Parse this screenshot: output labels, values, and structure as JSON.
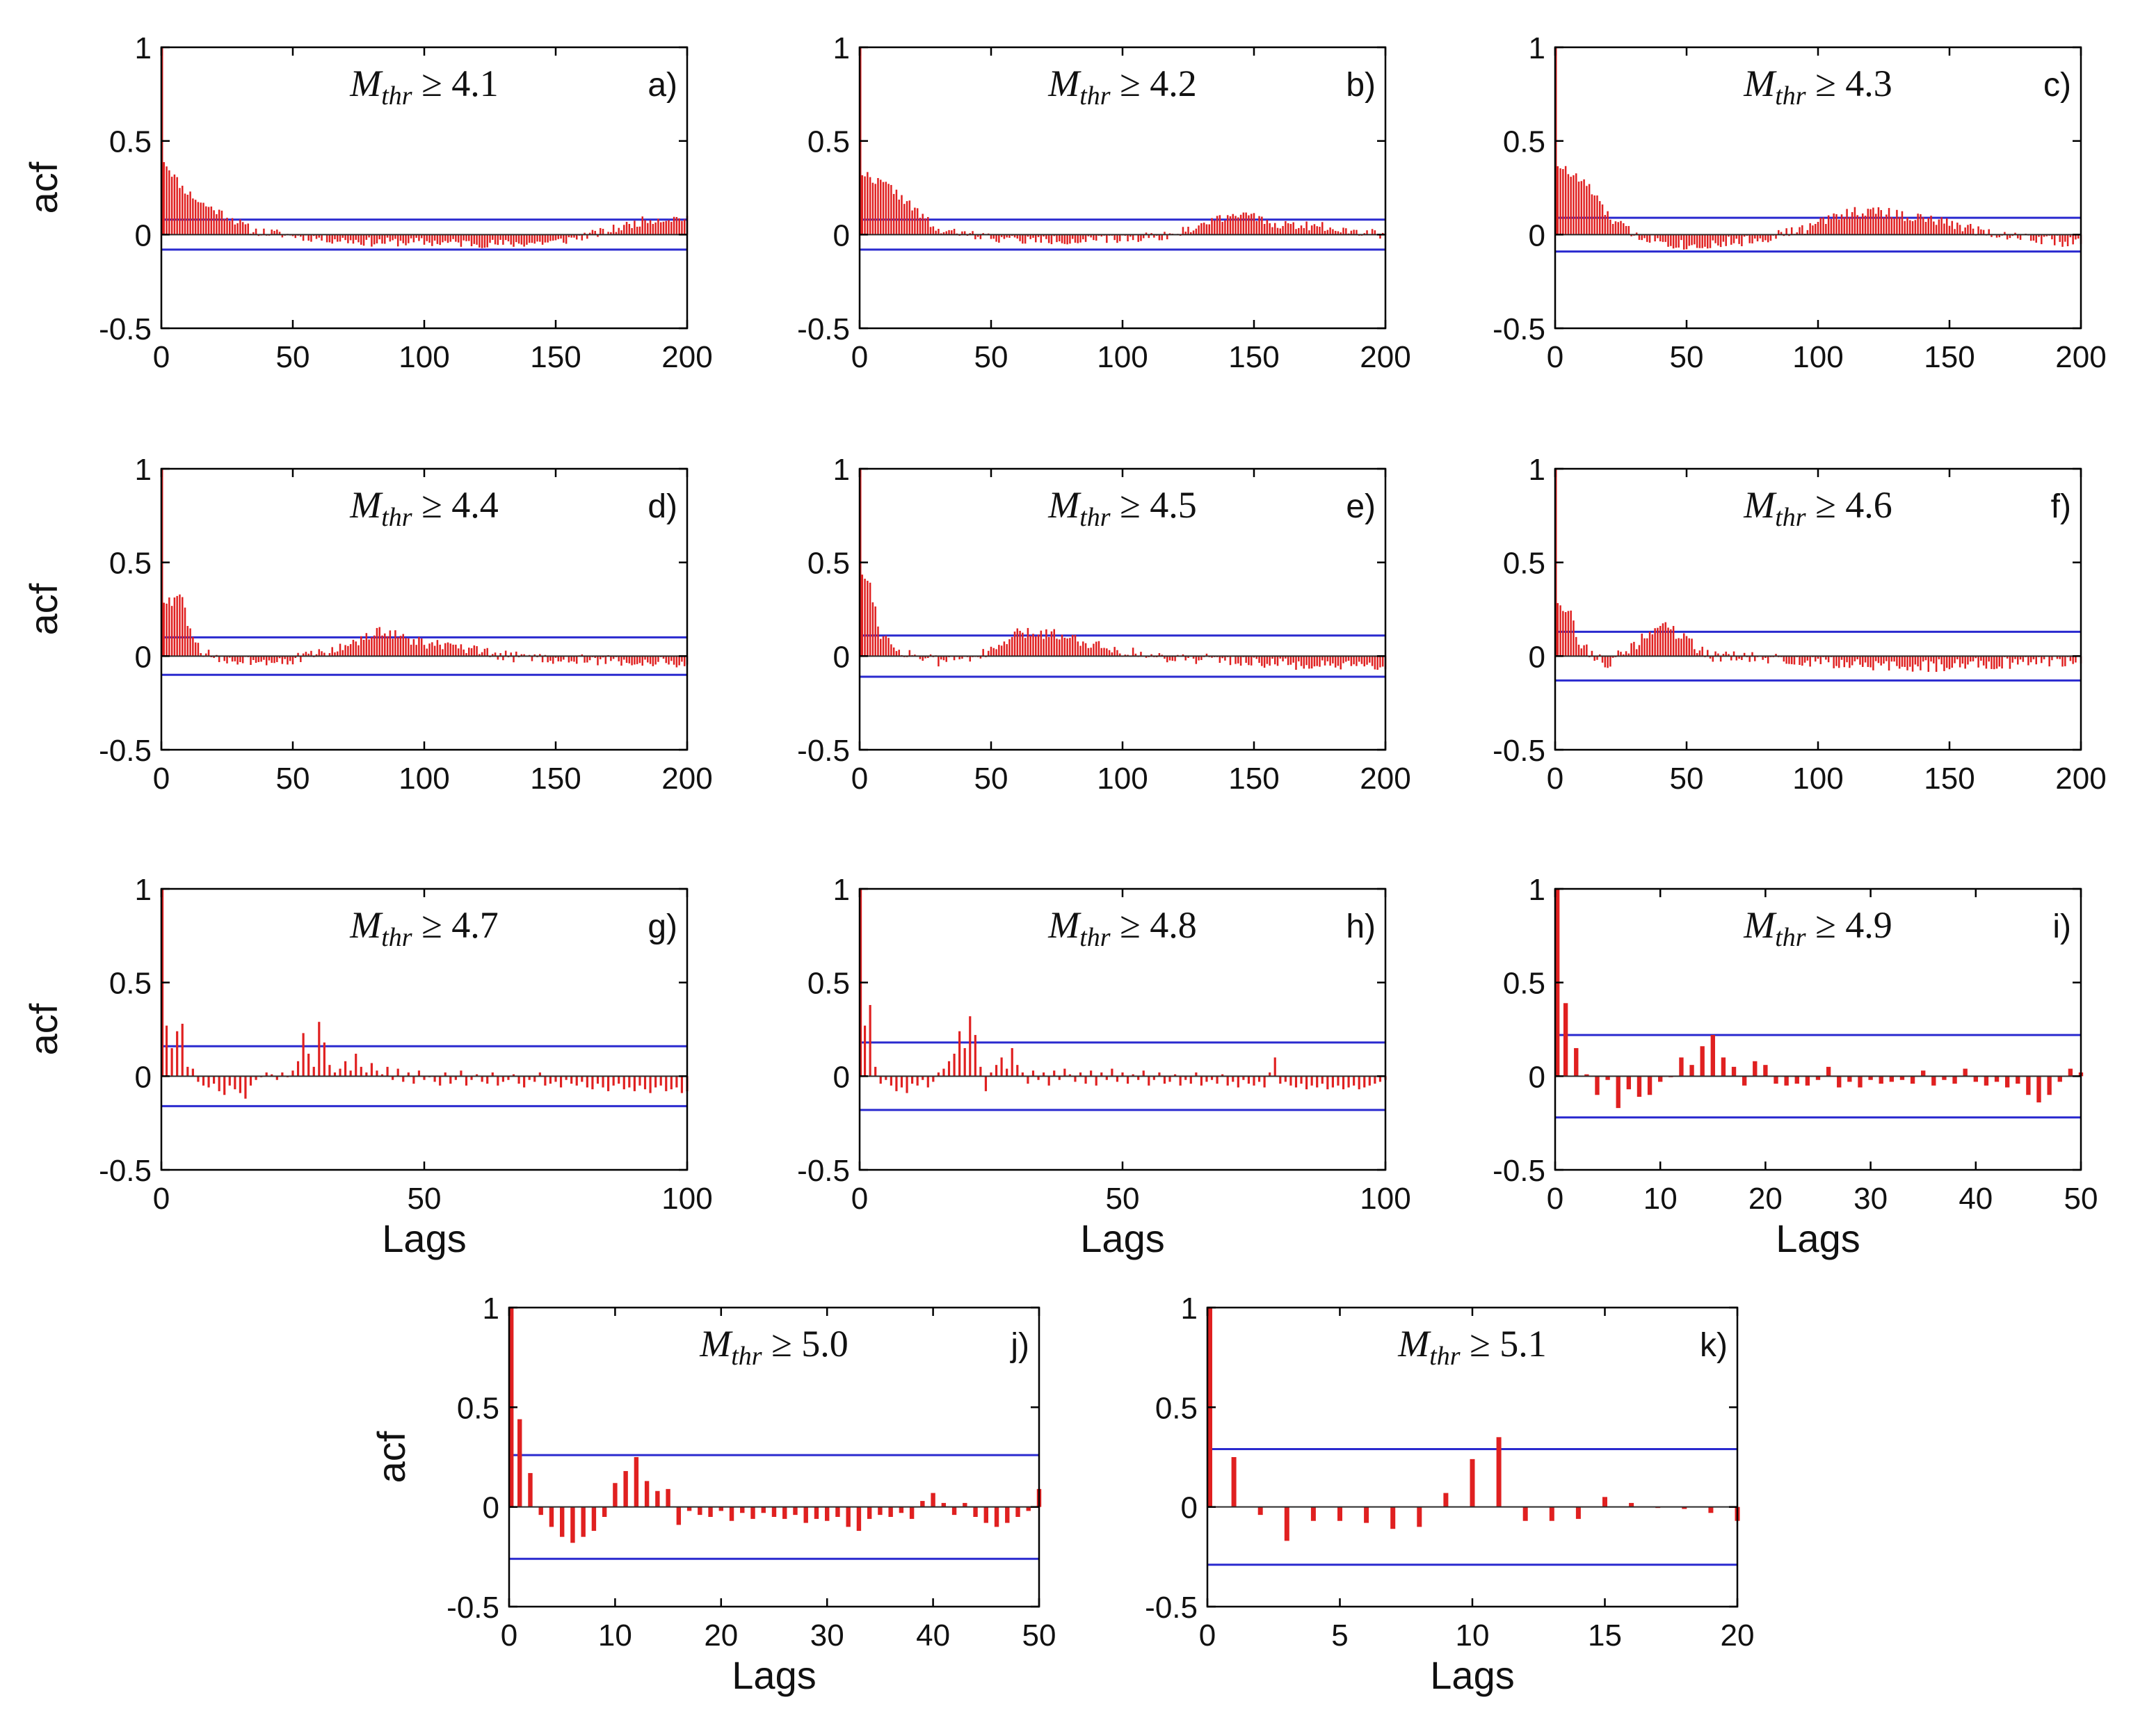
{
  "figure": {
    "ylabel": "acf",
    "xlabel": "Lags",
    "threshold_symbol": "M",
    "threshold_subscript": "thr",
    "threshold_operator": "≥",
    "colors": {
      "bars": "#e02020",
      "confidence_bounds": "#2a2acf",
      "axes": "#000000"
    }
  },
  "chart_data": [
    {
      "type": "bar",
      "panel": "a)",
      "threshold": "4.1",
      "xlim": [
        0,
        200
      ],
      "xticks": [
        0,
        50,
        100,
        150,
        200
      ],
      "ylim": [
        -0.5,
        1
      ],
      "yticks": [
        -0.5,
        0,
        0.5,
        1
      ],
      "yticklabels": [
        "-0.5",
        "0",
        "0.5",
        "1"
      ],
      "conf_bound": 0.08,
      "show_ylabel": true,
      "show_xlabel": false,
      "shape": [
        [
          0,
          1.0
        ],
        [
          1,
          0.4
        ],
        [
          3,
          0.35
        ],
        [
          8,
          0.25
        ],
        [
          15,
          0.17
        ],
        [
          25,
          0.1
        ],
        [
          35,
          0.02
        ],
        [
          60,
          -0.02
        ],
        [
          80,
          -0.04
        ],
        [
          100,
          -0.04
        ],
        [
          130,
          -0.05
        ],
        [
          150,
          -0.04
        ],
        [
          170,
          0.02
        ],
        [
          185,
          0.08
        ],
        [
          200,
          0.09
        ]
      ],
      "noise": 0.025,
      "seed": 11
    },
    {
      "type": "bar",
      "panel": "b)",
      "threshold": "4.2",
      "xlim": [
        0,
        200
      ],
      "xticks": [
        0,
        50,
        100,
        150,
        200
      ],
      "ylim": [
        -0.5,
        1
      ],
      "yticks": [
        -0.5,
        0,
        0.5,
        1
      ],
      "yticklabels": [
        "-0.5",
        "0",
        "0.5",
        "1"
      ],
      "conf_bound": 0.08,
      "show_ylabel": false,
      "show_xlabel": false,
      "shape": [
        [
          0,
          1.0
        ],
        [
          1,
          0.33
        ],
        [
          5,
          0.3
        ],
        [
          12,
          0.25
        ],
        [
          22,
          0.12
        ],
        [
          30,
          0.02
        ],
        [
          60,
          -0.03
        ],
        [
          90,
          -0.03
        ],
        [
          120,
          0.0
        ],
        [
          135,
          0.08
        ],
        [
          145,
          0.12
        ],
        [
          155,
          0.06
        ],
        [
          180,
          0.04
        ],
        [
          200,
          0.0
        ]
      ],
      "noise": 0.025,
      "seed": 22
    },
    {
      "type": "bar",
      "panel": "c)",
      "threshold": "4.3",
      "xlim": [
        0,
        200
      ],
      "xticks": [
        0,
        50,
        100,
        150,
        200
      ],
      "ylim": [
        -0.5,
        1
      ],
      "yticks": [
        -0.5,
        0,
        0.5,
        1
      ],
      "yticklabels": [
        "-0.5",
        "0",
        "0.5",
        "1"
      ],
      "conf_bound": 0.09,
      "show_ylabel": false,
      "show_xlabel": false,
      "shape": [
        [
          0,
          1.0
        ],
        [
          1,
          0.38
        ],
        [
          5,
          0.33
        ],
        [
          12,
          0.27
        ],
        [
          20,
          0.1
        ],
        [
          30,
          0.0
        ],
        [
          50,
          -0.06
        ],
        [
          75,
          -0.03
        ],
        [
          95,
          0.03
        ],
        [
          110,
          0.12
        ],
        [
          125,
          0.12
        ],
        [
          150,
          0.06
        ],
        [
          170,
          0.0
        ],
        [
          190,
          -0.03
        ],
        [
          200,
          -0.05
        ]
      ],
      "noise": 0.03,
      "seed": 33
    },
    {
      "type": "bar",
      "panel": "d)",
      "threshold": "4.4",
      "xlim": [
        0,
        200
      ],
      "xticks": [
        0,
        50,
        100,
        150,
        200
      ],
      "ylim": [
        -0.5,
        1
      ],
      "yticks": [
        -0.5,
        0,
        0.5,
        1
      ],
      "yticklabels": [
        "-0.5",
        "0",
        "0.5",
        "1"
      ],
      "conf_bound": 0.1,
      "show_ylabel": true,
      "show_xlabel": false,
      "shape": [
        [
          0,
          1.0
        ],
        [
          1,
          0.3
        ],
        [
          4,
          0.28
        ],
        [
          7,
          0.34
        ],
        [
          12,
          0.08
        ],
        [
          20,
          -0.02
        ],
        [
          50,
          -0.02
        ],
        [
          70,
          0.05
        ],
        [
          85,
          0.14
        ],
        [
          95,
          0.08
        ],
        [
          110,
          0.05
        ],
        [
          130,
          0.0
        ],
        [
          160,
          -0.02
        ],
        [
          200,
          -0.04
        ]
      ],
      "noise": 0.03,
      "seed": 44
    },
    {
      "type": "bar",
      "panel": "e)",
      "threshold": "4.5",
      "xlim": [
        0,
        200
      ],
      "xticks": [
        0,
        50,
        100,
        150,
        200
      ],
      "ylim": [
        -0.5,
        1
      ],
      "yticks": [
        -0.5,
        0,
        0.5,
        1
      ],
      "yticklabels": [
        "-0.5",
        "0",
        "0.5",
        "1"
      ],
      "conf_bound": 0.11,
      "show_ylabel": false,
      "show_xlabel": false,
      "shape": [
        [
          0,
          1.0
        ],
        [
          1,
          0.45
        ],
        [
          4,
          0.38
        ],
        [
          8,
          0.12
        ],
        [
          15,
          0.03
        ],
        [
          30,
          -0.03
        ],
        [
          50,
          0.02
        ],
        [
          60,
          0.12
        ],
        [
          75,
          0.12
        ],
        [
          90,
          0.06
        ],
        [
          110,
          0.0
        ],
        [
          140,
          -0.02
        ],
        [
          170,
          -0.05
        ],
        [
          200,
          -0.06
        ]
      ],
      "noise": 0.03,
      "seed": 55
    },
    {
      "type": "bar",
      "panel": "f)",
      "threshold": "4.6",
      "xlim": [
        0,
        200
      ],
      "xticks": [
        0,
        50,
        100,
        150,
        200
      ],
      "ylim": [
        -0.5,
        1
      ],
      "yticks": [
        -0.5,
        0,
        0.5,
        1
      ],
      "yticklabels": [
        "-0.5",
        "0",
        "0.5",
        "1"
      ],
      "conf_bound": 0.13,
      "show_ylabel": false,
      "show_xlabel": false,
      "shape": [
        [
          0,
          1.0
        ],
        [
          1,
          0.3
        ],
        [
          5,
          0.25
        ],
        [
          10,
          0.05
        ],
        [
          20,
          -0.04
        ],
        [
          30,
          0.05
        ],
        [
          40,
          0.18
        ],
        [
          50,
          0.08
        ],
        [
          60,
          0.0
        ],
        [
          100,
          -0.03
        ],
        [
          130,
          -0.06
        ],
        [
          160,
          -0.04
        ],
        [
          200,
          -0.02
        ]
      ],
      "noise": 0.035,
      "seed": 66
    },
    {
      "type": "bar",
      "panel": "g)",
      "threshold": "4.7",
      "xlim": [
        0,
        100
      ],
      "xticks": [
        0,
        50,
        100
      ],
      "ylim": [
        -0.5,
        1
      ],
      "yticks": [
        -0.5,
        0,
        0.5,
        1
      ],
      "yticklabels": [
        "-0.5",
        "0",
        "0.5",
        "1"
      ],
      "conf_bound": 0.16,
      "show_ylabel": true,
      "show_xlabel": true,
      "values": [
        1.0,
        0.27,
        0.15,
        0.24,
        0.28,
        0.05,
        0.04,
        -0.03,
        -0.05,
        -0.06,
        -0.04,
        -0.08,
        -0.1,
        -0.05,
        -0.07,
        -0.09,
        -0.12,
        -0.05,
        -0.02,
        0.0,
        0.02,
        0.01,
        -0.02,
        0.02,
        0.0,
        0.03,
        0.08,
        0.23,
        0.12,
        0.05,
        0.29,
        0.18,
        0.06,
        0.02,
        0.04,
        0.08,
        0.03,
        0.12,
        0.05,
        0.02,
        0.07,
        0.03,
        0.01,
        0.05,
        -0.02,
        0.04,
        -0.03,
        0.02,
        -0.04,
        0.03,
        -0.02,
        0.0,
        -0.03,
        -0.05,
        0.02,
        -0.04,
        -0.02,
        0.03,
        -0.05,
        -0.02,
        0.01,
        -0.03,
        -0.04,
        0.02,
        -0.05,
        -0.03,
        -0.02,
        0.01,
        -0.04,
        -0.06,
        -0.02,
        -0.03,
        0.02,
        -0.05,
        -0.04,
        -0.03,
        -0.06,
        -0.02,
        -0.04,
        -0.05,
        -0.03,
        -0.06,
        -0.07,
        -0.04,
        -0.06,
        -0.08,
        -0.05,
        -0.04,
        -0.07,
        -0.06,
        -0.08,
        -0.05,
        -0.07,
        -0.09,
        -0.06,
        -0.05,
        -0.08,
        -0.07,
        -0.06,
        -0.09,
        -0.08
      ]
    },
    {
      "type": "bar",
      "panel": "h)",
      "threshold": "4.8",
      "xlim": [
        0,
        100
      ],
      "xticks": [
        0,
        50,
        100
      ],
      "ylim": [
        -0.5,
        1
      ],
      "yticks": [
        -0.5,
        0,
        0.5,
        1
      ],
      "yticklabels": [
        "-0.5",
        "0",
        "0.5",
        "1"
      ],
      "conf_bound": 0.18,
      "show_ylabel": false,
      "show_xlabel": true,
      "values": [
        1.0,
        0.27,
        0.38,
        0.05,
        -0.04,
        -0.02,
        -0.05,
        -0.08,
        -0.06,
        -0.09,
        -0.04,
        -0.05,
        -0.02,
        -0.06,
        -0.03,
        0.02,
        0.04,
        0.08,
        0.12,
        0.24,
        0.15,
        0.32,
        0.22,
        0.05,
        -0.08,
        0.02,
        0.06,
        0.1,
        0.04,
        0.15,
        0.06,
        0.02,
        -0.04,
        0.03,
        -0.02,
        0.02,
        -0.05,
        0.03,
        -0.02,
        0.04,
        0.01,
        -0.03,
        0.02,
        -0.04,
        0.03,
        -0.05,
        0.02,
        -0.02,
        0.04,
        -0.03,
        0.02,
        -0.04,
        0.01,
        -0.02,
        0.03,
        -0.05,
        -0.02,
        0.02,
        -0.04,
        -0.03,
        0.01,
        -0.05,
        -0.02,
        -0.04,
        0.02,
        -0.05,
        -0.03,
        -0.02,
        -0.04,
        0.01,
        -0.05,
        -0.03,
        -0.06,
        -0.02,
        -0.04,
        -0.05,
        -0.03,
        -0.06,
        0.02,
        0.1,
        -0.04,
        -0.03,
        -0.05,
        -0.06,
        -0.04,
        -0.07,
        -0.05,
        -0.06,
        -0.04,
        -0.07,
        -0.06,
        -0.05,
        -0.07,
        -0.06,
        -0.05,
        -0.07,
        -0.06,
        -0.05,
        -0.04,
        -0.03,
        -0.02
      ]
    },
    {
      "type": "bar",
      "panel": "i)",
      "threshold": "4.9",
      "xlim": [
        0,
        50
      ],
      "xticks": [
        0,
        10,
        20,
        30,
        40,
        50
      ],
      "ylim": [
        -0.5,
        1
      ],
      "yticks": [
        -0.5,
        0,
        0.5,
        1
      ],
      "yticklabels": [
        "-0.5",
        "0",
        "0.5",
        "1"
      ],
      "conf_bound": 0.22,
      "show_ylabel": false,
      "show_xlabel": true,
      "values": [
        1.0,
        0.39,
        0.15,
        0.01,
        -0.1,
        -0.02,
        -0.17,
        -0.07,
        -0.11,
        -0.1,
        -0.03,
        0.0,
        0.1,
        0.06,
        0.16,
        0.22,
        0.1,
        0.05,
        -0.05,
        0.08,
        0.06,
        -0.04,
        -0.05,
        -0.04,
        -0.05,
        -0.02,
        0.05,
        -0.06,
        -0.03,
        -0.06,
        -0.02,
        -0.04,
        -0.03,
        -0.02,
        -0.04,
        0.03,
        -0.05,
        -0.02,
        -0.04,
        0.04,
        -0.03,
        -0.05,
        -0.03,
        -0.06,
        -0.04,
        -0.1,
        -0.14,
        -0.1,
        -0.03,
        0.04,
        0.02
      ]
    },
    {
      "type": "bar",
      "panel": "j)",
      "threshold": "5.0",
      "xlim": [
        0,
        50
      ],
      "xticks": [
        0,
        10,
        20,
        30,
        40,
        50
      ],
      "ylim": [
        -0.5,
        1
      ],
      "yticks": [
        -0.5,
        0,
        0.5,
        1
      ],
      "yticklabels": [
        "-0.5",
        "0",
        "0.5",
        "1"
      ],
      "conf_bound": 0.26,
      "show_ylabel": true,
      "show_xlabel": true,
      "values": [
        1.0,
        0.44,
        0.17,
        -0.04,
        -0.1,
        -0.15,
        -0.18,
        -0.15,
        -0.12,
        -0.05,
        0.12,
        0.18,
        0.25,
        0.13,
        0.08,
        0.09,
        -0.09,
        -0.02,
        -0.04,
        -0.05,
        -0.02,
        -0.07,
        -0.03,
        -0.06,
        -0.03,
        -0.05,
        -0.06,
        -0.04,
        -0.08,
        -0.06,
        -0.07,
        -0.05,
        -0.1,
        -0.12,
        -0.06,
        -0.04,
        -0.05,
        -0.03,
        -0.06,
        0.03,
        0.07,
        0.02,
        -0.04,
        0.02,
        -0.05,
        -0.08,
        -0.1,
        -0.08,
        -0.05,
        -0.02,
        0.09
      ]
    },
    {
      "type": "bar",
      "panel": "k)",
      "threshold": "5.1",
      "xlim": [
        0,
        20
      ],
      "xticks": [
        0,
        5,
        10,
        15,
        20
      ],
      "ylim": [
        -0.5,
        1
      ],
      "yticks": [
        -0.5,
        0,
        0.5,
        1
      ],
      "yticklabels": [
        "-0.5",
        "0",
        "0.5",
        "1"
      ],
      "conf_bound": 0.29,
      "show_ylabel": false,
      "show_xlabel": true,
      "values": [
        1.0,
        0.25,
        -0.04,
        -0.17,
        -0.07,
        -0.07,
        -0.08,
        -0.11,
        -0.1,
        0.07,
        0.24,
        0.35,
        -0.07,
        -0.07,
        -0.06,
        0.05,
        0.02,
        0.0,
        -0.01,
        -0.03,
        -0.07
      ]
    }
  ]
}
